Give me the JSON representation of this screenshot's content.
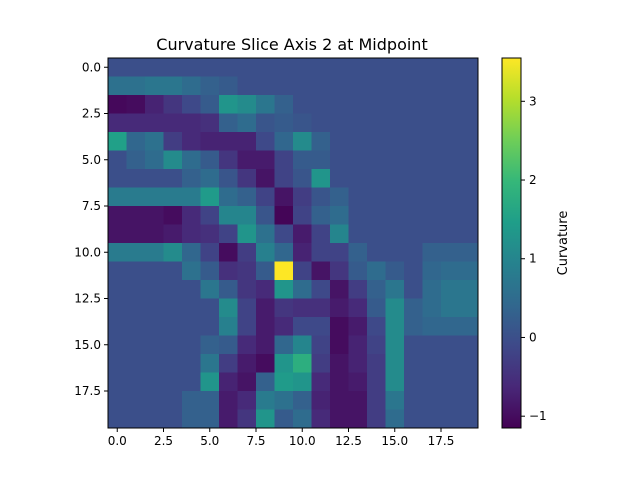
{
  "chart_data": {
    "type": "heatmap",
    "title": "Curvature Slice Axis 2 at Midpoint",
    "xlabel": "",
    "ylabel": "",
    "rows": 20,
    "cols": 20,
    "x_ticks": [
      "0.0",
      "2.5",
      "5.0",
      "7.5",
      "10.0",
      "12.5",
      "15.0",
      "17.5"
    ],
    "x_tick_values": [
      0,
      2.5,
      5,
      7.5,
      10,
      12.5,
      15,
      17.5
    ],
    "y_ticks": [
      "0.0",
      "2.5",
      "5.0",
      "7.5",
      "10.0",
      "12.5",
      "15.0",
      "17.5"
    ],
    "y_tick_values": [
      0,
      2.5,
      5,
      7.5,
      10,
      12.5,
      15,
      17.5
    ],
    "colorbar": {
      "label": "Curvature",
      "min": -1.15,
      "max": 3.55,
      "ticks": [
        "−1",
        "0",
        "1",
        "2",
        "3"
      ],
      "tick_values": [
        -1,
        0,
        1,
        2,
        3
      ]
    },
    "colormap": [
      "#440154",
      "#482878",
      "#3e4989",
      "#31688e",
      "#26828e",
      "#1f9e89",
      "#35b779",
      "#6ece58",
      "#b5de2b",
      "#fde725"
    ],
    "values": [
      [
        0,
        0,
        0,
        0,
        0,
        0,
        0,
        0,
        0,
        0,
        0,
        0,
        0,
        0,
        0,
        0,
        0,
        0,
        0,
        0
      ],
      [
        0.6,
        0.6,
        0.7,
        0.7,
        0.5,
        0.3,
        0.2,
        0,
        0,
        0,
        0,
        0,
        0,
        0,
        0,
        0,
        0,
        0,
        0,
        0
      ],
      [
        -1.05,
        -1.0,
        -0.7,
        -0.4,
        -0.1,
        0.2,
        1.3,
        1.1,
        0.7,
        0.3,
        0,
        0,
        0,
        0,
        0,
        0,
        0,
        0,
        0,
        0
      ],
      [
        -0.6,
        -0.6,
        -0.6,
        -0.6,
        -0.6,
        -0.5,
        0.3,
        0.5,
        0.1,
        0.2,
        0.1,
        0,
        0,
        0,
        0,
        0,
        0,
        0,
        0,
        0
      ],
      [
        1.5,
        0.4,
        0.6,
        -0.3,
        -0.6,
        -0.7,
        -0.7,
        -0.7,
        -0.1,
        0.4,
        1.1,
        0.3,
        0,
        0,
        0,
        0,
        0,
        0,
        0,
        0
      ],
      [
        0.0,
        0.3,
        0.5,
        1.1,
        0.5,
        0.2,
        -0.4,
        -0.8,
        -0.8,
        -0.2,
        0.2,
        0.2,
        0,
        0,
        0,
        0,
        0,
        0,
        0,
        0
      ],
      [
        0,
        0,
        0,
        0,
        0.3,
        0.5,
        0.1,
        -0.4,
        -0.9,
        -0.2,
        0.1,
        1.3,
        0,
        0,
        0,
        0,
        0,
        0,
        0,
        0
      ],
      [
        0.8,
        0.8,
        0.8,
        0.8,
        0.8,
        1.4,
        0.5,
        0.3,
        -0.2,
        -0.9,
        -0.3,
        0.1,
        0.3,
        0,
        0,
        0,
        0,
        0,
        0,
        0
      ],
      [
        -0.9,
        -0.9,
        -0.9,
        -1.0,
        -0.6,
        -0.2,
        1.0,
        1.0,
        0.1,
        -1.1,
        -0.2,
        0.3,
        0.5,
        0,
        0,
        0,
        0,
        0,
        0,
        0
      ],
      [
        -0.9,
        -0.9,
        -0.9,
        -0.8,
        -0.6,
        -0.5,
        -0.2,
        1.3,
        0.6,
        -0.1,
        -0.8,
        -0.2,
        1.0,
        0,
        0,
        0,
        0,
        0,
        0,
        0
      ],
      [
        0.8,
        0.8,
        0.8,
        1.1,
        0.4,
        -0.2,
        -1.0,
        -0.3,
        0.9,
        0.4,
        -0.7,
        -0.2,
        -0.2,
        0.3,
        0,
        0,
        0,
        0.3,
        0.3,
        0.3
      ],
      [
        0,
        0,
        0,
        0,
        0.6,
        0.2,
        -0.5,
        -0.4,
        0.2,
        3.55,
        -0.2,
        -0.9,
        -0.4,
        0.2,
        0.5,
        0.2,
        0,
        0.4,
        0.5,
        0.5
      ],
      [
        0,
        0,
        0,
        0,
        0,
        0.7,
        0.2,
        -0.4,
        -0.6,
        1.3,
        0.5,
        -0.1,
        -0.9,
        -0.3,
        0.3,
        0.7,
        0,
        0.5,
        0.7,
        0.7
      ],
      [
        0,
        0,
        0,
        0,
        0,
        0,
        1.1,
        -0.2,
        -0.8,
        -0.4,
        -0.5,
        -0.5,
        -0.8,
        -0.6,
        0.2,
        1.1,
        0.3,
        0.5,
        0.7,
        0.7
      ],
      [
        0,
        0,
        0,
        0,
        0,
        0,
        0.9,
        -0.2,
        -0.8,
        -0.6,
        -0.1,
        -0.1,
        -1.0,
        -0.8,
        -0.1,
        1.1,
        0.3,
        0.4,
        0.4,
        0.4
      ],
      [
        0,
        0,
        0,
        0,
        0,
        0.3,
        0.2,
        -0.6,
        -0.8,
        0.4,
        1.0,
        -0.2,
        -1.0,
        -0.7,
        -0.2,
        1.1,
        0,
        0,
        0,
        0
      ],
      [
        0,
        0,
        0,
        0,
        0,
        0.7,
        -0.3,
        -0.8,
        -1.0,
        1.3,
        1.8,
        -0.3,
        -0.9,
        -0.7,
        -0.3,
        1.1,
        0,
        0,
        0,
        0
      ],
      [
        0,
        0,
        0,
        0,
        0,
        1.3,
        -0.7,
        -0.9,
        0.3,
        1.4,
        1.3,
        -0.6,
        -0.9,
        -0.8,
        -0.3,
        1.1,
        0,
        0,
        0,
        0
      ],
      [
        0,
        0,
        0,
        0,
        0.3,
        0.3,
        -0.8,
        -0.6,
        0.8,
        0.6,
        0.3,
        -0.7,
        -0.9,
        -0.9,
        -0.3,
        0.7,
        0,
        0,
        0,
        0
      ],
      [
        0,
        0,
        0,
        0,
        0.3,
        0.3,
        -0.8,
        -0.4,
        1.3,
        0.2,
        0.5,
        -0.6,
        -0.9,
        -0.9,
        -0.3,
        0.5,
        0,
        0,
        0,
        0
      ]
    ]
  }
}
